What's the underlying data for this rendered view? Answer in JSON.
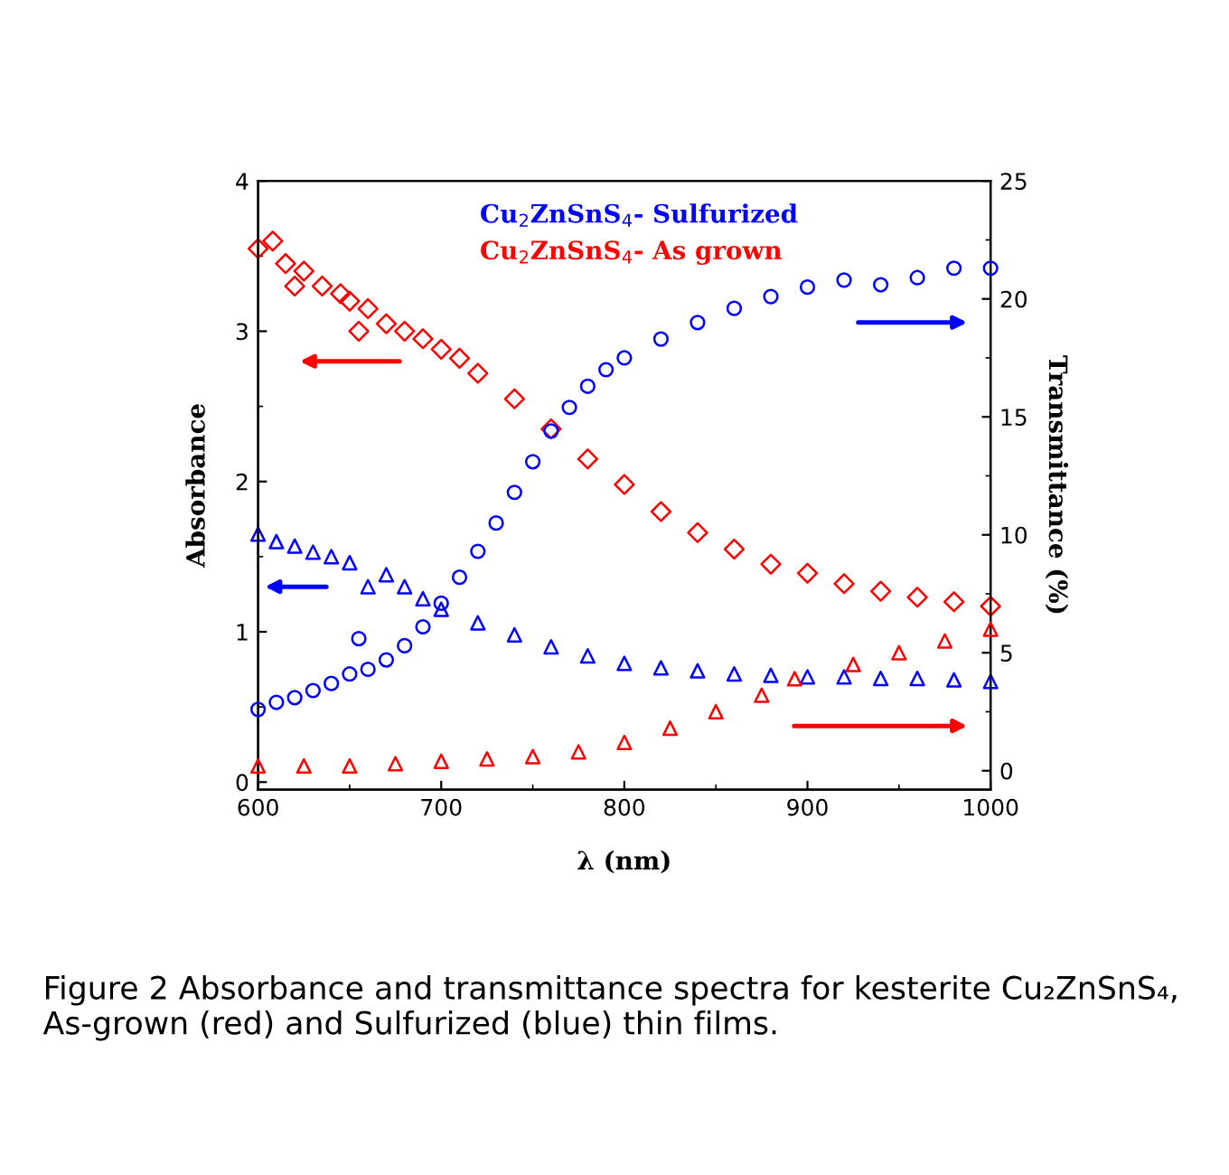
{
  "chart_data": {
    "type": "scatter",
    "xlabel": "λ (nm)",
    "ylabel": "Absorbance",
    "y2label": "Transmittance (%)",
    "xlim": [
      600,
      1000
    ],
    "xticks": [
      600,
      700,
      800,
      900,
      1000
    ],
    "ylim": [
      -0.05,
      4
    ],
    "yticks": [
      0,
      1,
      2,
      3,
      4
    ],
    "y2lim": [
      -0.8,
      25
    ],
    "y2ticks": [
      0,
      5,
      10,
      15,
      20,
      25
    ],
    "grid": false,
    "legend": "top",
    "series": [
      {
        "name": "Cu$_{2}$ZnSnS$_{4}$- Sulfurized",
        "color": "#0000ff",
        "marker": "triangle",
        "x": [
          600,
          610,
          620,
          630,
          640,
          650,
          660,
          670,
          680,
          690,
          700,
          720,
          740,
          760,
          780,
          800,
          820,
          840,
          860,
          880,
          900,
          920,
          940,
          960,
          980,
          1000
        ],
        "values": [
          1.65,
          1.6,
          1.57,
          1.53,
          1.5,
          1.46,
          1.3,
          1.38,
          1.3,
          1.22,
          1.15,
          1.06,
          0.98,
          0.9,
          0.84,
          0.79,
          0.76,
          0.74,
          0.72,
          0.71,
          0.7,
          0.7,
          0.69,
          0.69,
          0.68,
          0.67
        ]
      },
      {
        "name": "Cu$_{2}$ZnSnS$_{4}$- As grown",
        "color": "#ff0000",
        "marker": "diamond",
        "x": [
          600,
          608,
          615,
          620,
          625,
          635,
          645,
          650,
          655,
          660,
          670,
          680,
          690,
          700,
          710,
          720,
          740,
          760,
          780,
          800,
          820,
          840,
          860,
          880,
          900,
          920,
          940,
          960,
          980,
          1000
        ],
        "values": [
          3.55,
          3.6,
          3.45,
          3.3,
          3.4,
          3.3,
          3.25,
          3.2,
          3.0,
          3.15,
          3.05,
          3.0,
          2.95,
          2.88,
          2.82,
          2.72,
          2.55,
          2.35,
          2.15,
          1.98,
          1.8,
          1.66,
          1.55,
          1.45,
          1.39,
          1.32,
          1.27,
          1.23,
          1.2,
          1.17
        ]
      },
      {
        "color": "#0000ff",
        "marker": "circle",
        "axis": "y2",
        "x": [
          600,
          610,
          620,
          630,
          640,
          650,
          655,
          660,
          670,
          680,
          690,
          700,
          710,
          720,
          730,
          740,
          750,
          760,
          770,
          780,
          790,
          800,
          820,
          840,
          860,
          880,
          900,
          920,
          940,
          960,
          980,
          1000
        ],
        "values": [
          2.6,
          2.9,
          3.1,
          3.4,
          3.7,
          4.1,
          5.6,
          4.3,
          4.7,
          5.3,
          6.1,
          7.1,
          8.2,
          9.3,
          10.5,
          11.8,
          13.1,
          14.4,
          15.4,
          16.3,
          17.0,
          17.5,
          18.3,
          19.0,
          19.6,
          20.1,
          20.5,
          20.8,
          20.6,
          20.9,
          21.3,
          21.3
        ]
      },
      {
        "color": "#ff0000",
        "marker": "triangle",
        "axis": "y2",
        "x": [
          600,
          625,
          650,
          675,
          700,
          725,
          750,
          775,
          800,
          825,
          850,
          875,
          893,
          925,
          950,
          975,
          1000
        ],
        "values": [
          0.2,
          0.2,
          0.2,
          0.3,
          0.4,
          0.5,
          0.6,
          0.8,
          1.2,
          1.8,
          2.5,
          3.2,
          3.9,
          4.5,
          5.0,
          5.5,
          6.0
        ]
      }
    ],
    "annotations": [
      "Figure 2 Absorbance and transmittance spectra for kesterite Cu₂ZnSnS₄, As-grown (red) and Sulfurized (blue) thin films."
    ]
  }
}
